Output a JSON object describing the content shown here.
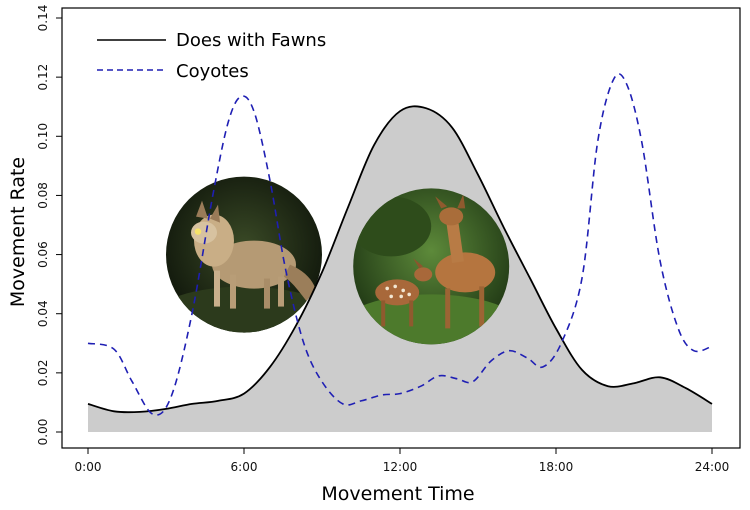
{
  "chart_data": {
    "type": "line",
    "title": "",
    "xlabel": "Movement Time",
    "ylabel": "Movement Rate",
    "xlim": [
      0,
      24
    ],
    "ylim": [
      0,
      0.14
    ],
    "x_ticks": [
      0,
      6,
      12,
      18,
      24
    ],
    "x_tick_labels": [
      "0:00",
      "6:00",
      "12:00",
      "18:00",
      "24:00"
    ],
    "y_ticks": [
      0,
      0.02,
      0.04,
      0.06,
      0.08,
      0.1,
      0.12,
      0.14
    ],
    "y_tick_labels": [
      "0.00",
      "0.02",
      "0.04",
      "0.06",
      "0.08",
      "0.10",
      "0.12",
      "0.14"
    ],
    "legend_position": "top-left",
    "grid": false,
    "series": [
      {
        "name": "Does with Fawns",
        "style": "solid",
        "color": "#000000",
        "fill": "#cccccc",
        "points": [
          [
            0,
            0.0095
          ],
          [
            1,
            0.007
          ],
          [
            2,
            0.0068
          ],
          [
            3,
            0.0078
          ],
          [
            4,
            0.0095
          ],
          [
            5,
            0.0105
          ],
          [
            6,
            0.013
          ],
          [
            7,
            0.022
          ],
          [
            8,
            0.036
          ],
          [
            9,
            0.054
          ],
          [
            10,
            0.076
          ],
          [
            11,
            0.097
          ],
          [
            12,
            0.1085
          ],
          [
            13,
            0.1095
          ],
          [
            14,
            0.103
          ],
          [
            15,
            0.087
          ],
          [
            16,
            0.069
          ],
          [
            17,
            0.052
          ],
          [
            18,
            0.035
          ],
          [
            19,
            0.021
          ],
          [
            20,
            0.0155
          ],
          [
            21,
            0.0165
          ],
          [
            22,
            0.0185
          ],
          [
            23,
            0.0148
          ],
          [
            24,
            0.0095
          ]
        ]
      },
      {
        "name": "Coyotes",
        "style": "dashed",
        "color": "#1f1fb4",
        "points": [
          [
            0,
            0.03
          ],
          [
            1,
            0.028
          ],
          [
            1.7,
            0.017
          ],
          [
            2.5,
            0.006
          ],
          [
            3.2,
            0.012
          ],
          [
            4,
            0.04
          ],
          [
            4.8,
            0.08
          ],
          [
            5.4,
            0.105
          ],
          [
            5.9,
            0.1135
          ],
          [
            6.4,
            0.108
          ],
          [
            7,
            0.085
          ],
          [
            7.6,
            0.055
          ],
          [
            8.3,
            0.03
          ],
          [
            9,
            0.017
          ],
          [
            9.8,
            0.0095
          ],
          [
            10.5,
            0.0105
          ],
          [
            11.3,
            0.0125
          ],
          [
            12,
            0.013
          ],
          [
            12.8,
            0.0155
          ],
          [
            13.5,
            0.019
          ],
          [
            14.2,
            0.018
          ],
          [
            14.8,
            0.017
          ],
          [
            15.5,
            0.024
          ],
          [
            16.2,
            0.0275
          ],
          [
            16.9,
            0.025
          ],
          [
            17.5,
            0.022
          ],
          [
            18.2,
            0.03
          ],
          [
            19,
            0.052
          ],
          [
            19.6,
            0.098
          ],
          [
            20.2,
            0.119
          ],
          [
            20.7,
            0.118
          ],
          [
            21.3,
            0.098
          ],
          [
            22,
            0.058
          ],
          [
            22.7,
            0.035
          ],
          [
            23.3,
            0.0275
          ],
          [
            24,
            0.029
          ]
        ]
      }
    ]
  },
  "photos": [
    {
      "subject": "coyote",
      "x": 6.0,
      "y": 0.06
    },
    {
      "subject": "doe-with-fawn",
      "x": 13.2,
      "y": 0.056
    }
  ]
}
